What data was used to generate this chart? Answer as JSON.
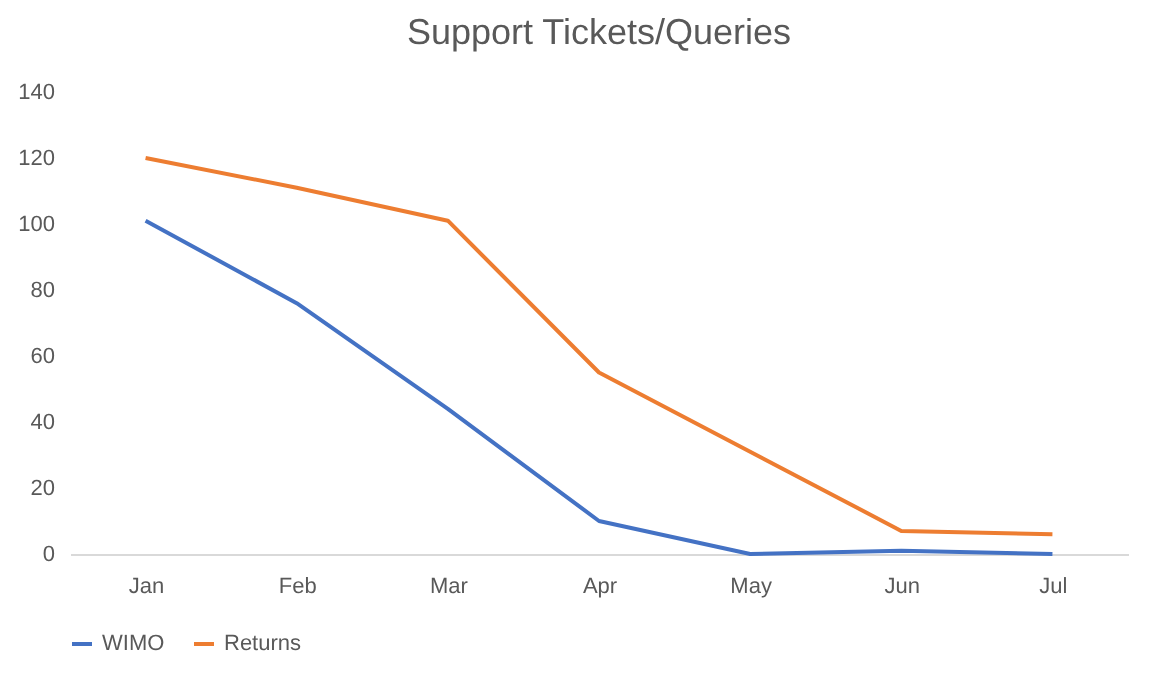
{
  "chart_data": {
    "type": "line",
    "title": "Support Tickets/Queries",
    "categories": [
      "Jan",
      "Feb",
      "Mar",
      "Apr",
      "May",
      "Jun",
      "Jul"
    ],
    "series": [
      {
        "name": "WIMO",
        "color": "#4472c4",
        "values": [
          101,
          76,
          44,
          10,
          0,
          1,
          0
        ]
      },
      {
        "name": "Returns",
        "color": "#ed7d31",
        "values": [
          120,
          111,
          101,
          55,
          31,
          7,
          6
        ]
      }
    ],
    "ylim": [
      0,
      140
    ],
    "yticks": [
      0,
      20,
      40,
      60,
      80,
      100,
      120,
      140
    ],
    "grid": false,
    "legend": "bottom",
    "marker": "none",
    "line_style": "solid"
  }
}
